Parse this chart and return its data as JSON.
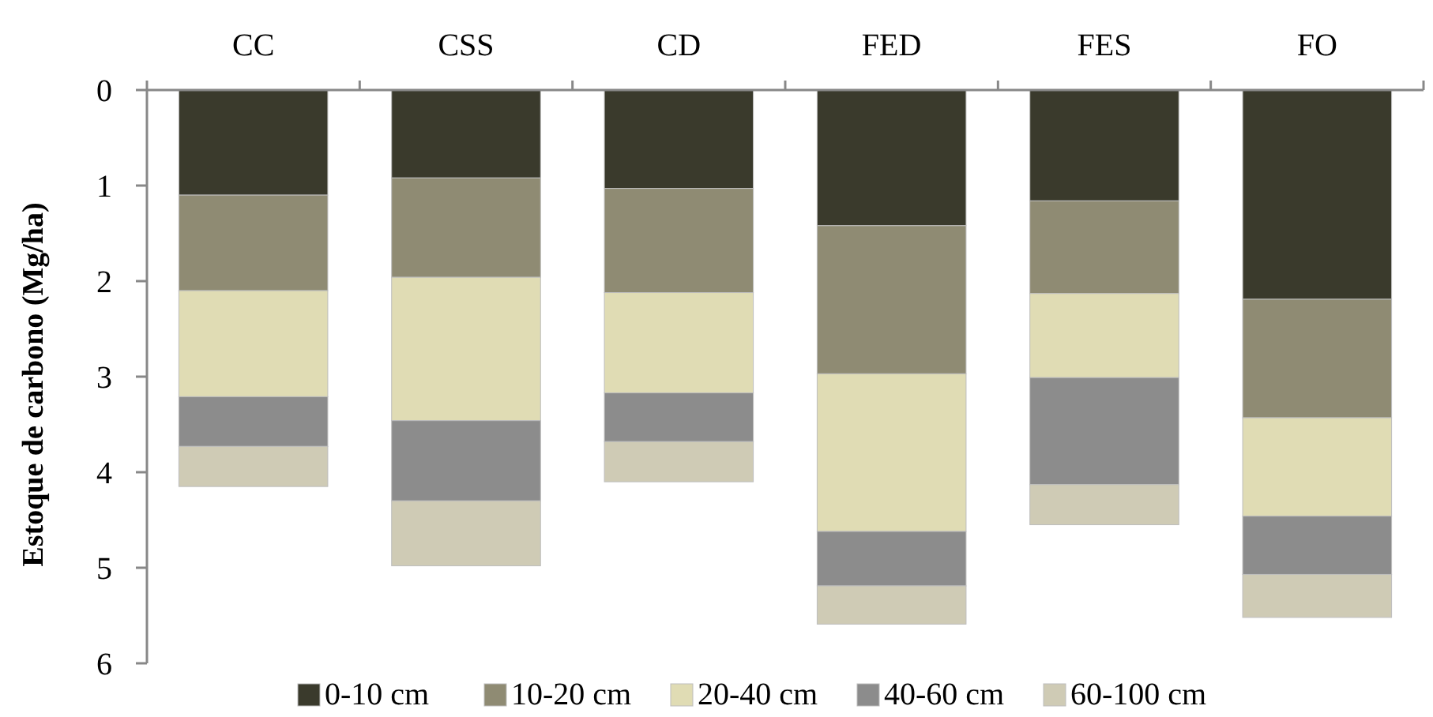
{
  "chart_data": {
    "type": "bar",
    "stacked": true,
    "ylabel": "Estoque de carbono (Mg/ha)",
    "categories": [
      "CC",
      "CSS",
      "CD",
      "FED",
      "FES",
      "FO"
    ],
    "ylim": [
      6,
      0
    ],
    "yticks": [
      0,
      1,
      2,
      3,
      4,
      5,
      6
    ],
    "legend": "bottom",
    "series": [
      {
        "name": "0-10 cm",
        "color": "#3a3a2c",
        "values": [
          1.1,
          0.92,
          1.03,
          1.42,
          1.16,
          2.19
        ]
      },
      {
        "name": "10-20 cm",
        "color": "#8f8b73",
        "values": [
          1.0,
          1.04,
          1.09,
          1.55,
          0.97,
          1.24
        ]
      },
      {
        "name": "20-40 cm",
        "color": "#e0dcb4",
        "values": [
          1.11,
          1.5,
          1.05,
          1.65,
          0.88,
          1.03
        ]
      },
      {
        "name": "40-60 cm",
        "color": "#8c8c8c",
        "values": [
          0.52,
          0.84,
          0.51,
          0.57,
          1.12,
          0.61
        ]
      },
      {
        "name": "60-100 cm",
        "color": "#cfcbb5",
        "values": [
          0.42,
          0.68,
          0.42,
          0.4,
          0.42,
          0.45
        ]
      }
    ]
  }
}
